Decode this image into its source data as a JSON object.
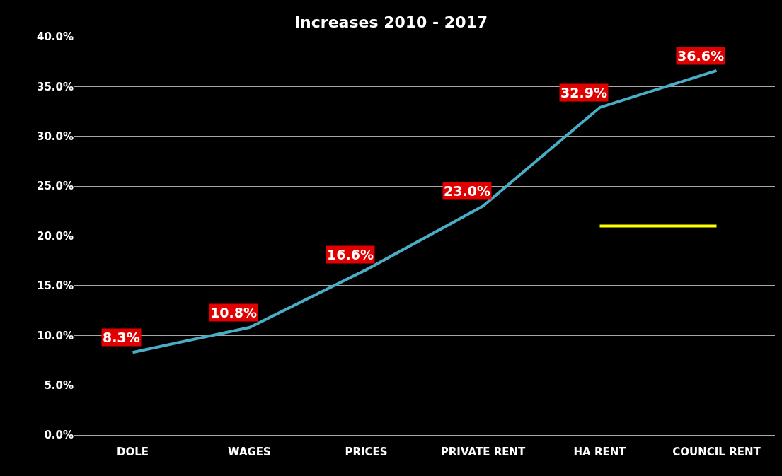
{
  "chart_data": {
    "type": "line",
    "title": "Increases 2010 - 2017",
    "categories": [
      "DOLE",
      "WAGES",
      "PRICES",
      "PRIVATE RENT",
      "HA RENT",
      "COUNCIL RENT"
    ],
    "series": [
      {
        "color": "#4bacc6",
        "values": [
          8.3,
          10.8,
          16.6,
          23.0,
          32.9,
          36.6
        ],
        "value_labels": [
          "8.3%",
          "10.8%",
          "16.6%",
          "23.0%",
          "32.9%",
          "36.6%"
        ]
      },
      {
        "color": "#ffff00",
        "values": [
          null,
          null,
          null,
          null,
          21.0,
          21.0
        ]
      }
    ],
    "ylim": [
      0,
      40
    ],
    "yticks": [
      {
        "value": 0,
        "label": "0.0%"
      },
      {
        "value": 5,
        "label": "5.0%"
      },
      {
        "value": 10,
        "label": "10.0%"
      },
      {
        "value": 15,
        "label": "15.0%"
      },
      {
        "value": 20,
        "label": "20.0%"
      },
      {
        "value": 25,
        "label": "25.0%"
      },
      {
        "value": 30,
        "label": "30.0%"
      },
      {
        "value": 35,
        "label": "35.0%"
      },
      {
        "value": 40,
        "label": "40.0%"
      }
    ],
    "grid": "y",
    "marker": "none",
    "line_style": "solid"
  }
}
